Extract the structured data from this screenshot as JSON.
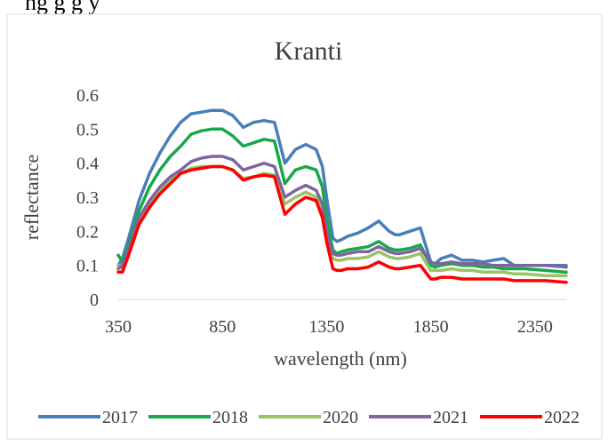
{
  "page": {
    "top_caption": "ng g           g           y"
  },
  "chart_data": {
    "type": "line",
    "title": "Kranti",
    "xlabel": "wavelength (nm)",
    "ylabel": "reflectance",
    "xlim": [
      350,
      2500
    ],
    "ylim": [
      0,
      0.6
    ],
    "x_ticks": [
      "350",
      "850",
      "1350",
      "1850",
      "2350"
    ],
    "y_ticks": [
      "0",
      "0.1",
      "0.2",
      "0.3",
      "0.4",
      "0.5",
      "0.6"
    ],
    "grid": false,
    "legend_position": "bottom",
    "x": [
      350,
      370,
      400,
      450,
      500,
      550,
      600,
      650,
      700,
      750,
      800,
      850,
      900,
      950,
      1000,
      1050,
      1100,
      1150,
      1200,
      1250,
      1300,
      1330,
      1350,
      1380,
      1400,
      1420,
      1450,
      1500,
      1550,
      1600,
      1650,
      1680,
      1700,
      1750,
      1800,
      1850,
      1870,
      1900,
      1950,
      2000,
      2050,
      2100,
      2150,
      2200,
      2250,
      2300,
      2400,
      2500
    ],
    "series": [
      {
        "name": "2017",
        "color": "#4a7ebb",
        "values": [
          0.1,
          0.12,
          0.18,
          0.29,
          0.37,
          0.43,
          0.48,
          0.52,
          0.545,
          0.55,
          0.555,
          0.555,
          0.54,
          0.505,
          0.52,
          0.525,
          0.52,
          0.4,
          0.44,
          0.455,
          0.44,
          0.39,
          0.3,
          0.18,
          0.17,
          0.175,
          0.185,
          0.195,
          0.21,
          0.23,
          0.2,
          0.19,
          0.19,
          0.2,
          0.21,
          0.11,
          0.105,
          0.12,
          0.13,
          0.115,
          0.115,
          0.11,
          0.115,
          0.12,
          0.1,
          0.1,
          0.1,
          0.1
        ]
      },
      {
        "name": "2018",
        "color": "#18a84a",
        "values": [
          0.13,
          0.11,
          0.16,
          0.26,
          0.33,
          0.38,
          0.42,
          0.45,
          0.485,
          0.495,
          0.5,
          0.5,
          0.48,
          0.45,
          0.46,
          0.47,
          0.465,
          0.34,
          0.38,
          0.39,
          0.38,
          0.33,
          0.24,
          0.145,
          0.135,
          0.14,
          0.145,
          0.15,
          0.155,
          0.17,
          0.15,
          0.145,
          0.145,
          0.15,
          0.16,
          0.1,
          0.095,
          0.1,
          0.105,
          0.1,
          0.1,
          0.095,
          0.095,
          0.09,
          0.09,
          0.09,
          0.085,
          0.08
        ]
      },
      {
        "name": "2020",
        "color": "#98c466",
        "values": [
          0.1,
          0.09,
          0.14,
          0.23,
          0.28,
          0.32,
          0.35,
          0.37,
          0.385,
          0.39,
          0.39,
          0.39,
          0.38,
          0.355,
          0.36,
          0.37,
          0.365,
          0.28,
          0.3,
          0.315,
          0.3,
          0.26,
          0.19,
          0.12,
          0.115,
          0.115,
          0.12,
          0.12,
          0.125,
          0.14,
          0.125,
          0.12,
          0.12,
          0.125,
          0.135,
          0.085,
          0.085,
          0.085,
          0.09,
          0.085,
          0.085,
          0.08,
          0.08,
          0.08,
          0.075,
          0.075,
          0.07,
          0.07
        ]
      },
      {
        "name": "2021",
        "color": "#7f64a0",
        "values": [
          0.09,
          0.1,
          0.15,
          0.24,
          0.29,
          0.33,
          0.36,
          0.38,
          0.405,
          0.415,
          0.42,
          0.42,
          0.41,
          0.38,
          0.39,
          0.4,
          0.39,
          0.3,
          0.32,
          0.335,
          0.32,
          0.28,
          0.2,
          0.135,
          0.13,
          0.13,
          0.135,
          0.14,
          0.14,
          0.155,
          0.14,
          0.135,
          0.135,
          0.14,
          0.15,
          0.11,
          0.105,
          0.105,
          0.11,
          0.105,
          0.105,
          0.105,
          0.1,
          0.1,
          0.1,
          0.1,
          0.1,
          0.095
        ]
      },
      {
        "name": "2022",
        "color": "#ff0000",
        "values": [
          0.08,
          0.08,
          0.13,
          0.22,
          0.27,
          0.31,
          0.34,
          0.37,
          0.38,
          0.385,
          0.39,
          0.39,
          0.38,
          0.35,
          0.36,
          0.365,
          0.36,
          0.25,
          0.28,
          0.3,
          0.29,
          0.24,
          0.17,
          0.09,
          0.085,
          0.085,
          0.09,
          0.09,
          0.095,
          0.11,
          0.095,
          0.09,
          0.09,
          0.095,
          0.1,
          0.06,
          0.06,
          0.065,
          0.065,
          0.06,
          0.06,
          0.06,
          0.06,
          0.06,
          0.055,
          0.055,
          0.055,
          0.05
        ]
      }
    ]
  }
}
